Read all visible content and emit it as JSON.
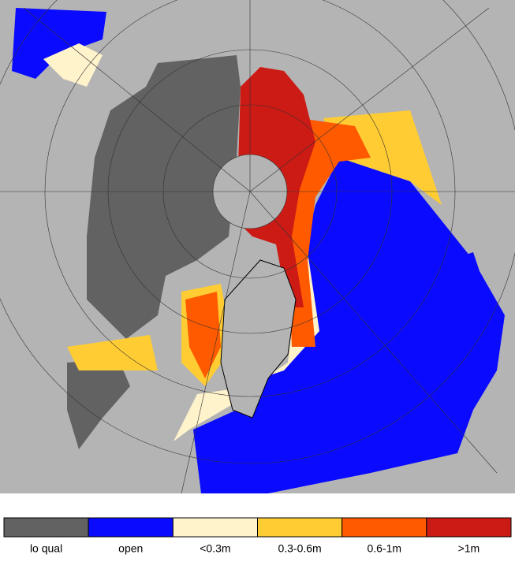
{
  "legend": {
    "items": [
      {
        "label": "lo qual",
        "color": "#626262"
      },
      {
        "label": "open",
        "color": "#0a0aff"
      },
      {
        "label": "<0.3m",
        "color": "#fff3cc"
      },
      {
        "label": "0.3-0.6m",
        "color": "#ffcc33"
      },
      {
        "label": "0.6-1m",
        "color": "#ff5a00"
      },
      {
        "label": ">1m",
        "color": "#cc1a14"
      }
    ]
  }
}
